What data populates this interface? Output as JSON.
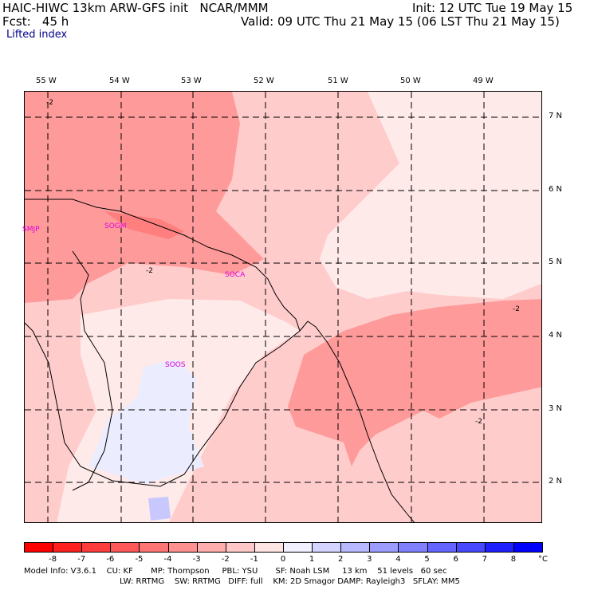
{
  "header": {
    "line1_left": "HAIC-HIWC 13km ARW-GFS init   NCAR/MMM",
    "line1_right": "Init: 12 UTC Tue 19 May 15",
    "line2_left": "Fcst:   45 h",
    "line2_right": "Valid: 09 UTC Thu 21 May 15 (06 LST Thu 21 May 15)",
    "field": "Lifted index"
  },
  "lon_labels": [
    "55 W",
    "54 W",
    "53 W",
    "52 W",
    "51 W",
    "50 W",
    "49 W"
  ],
  "lat_labels": [
    "7 N",
    "6 N",
    "5 N",
    "4 N",
    "3 N",
    "2 N"
  ],
  "stations": [
    "SMJP",
    "SOGM",
    "SOCA",
    "SOOS"
  ],
  "contour_labels": [
    "-2",
    "-2",
    "-2",
    "-2"
  ],
  "colorbar": {
    "labels": [
      "-8",
      "-7",
      "-6",
      "-5",
      "-4",
      "-3",
      "-2",
      "-1",
      "0",
      "1",
      "2",
      "3",
      "4",
      "5",
      "6",
      "7",
      "8"
    ],
    "unit": "°C",
    "colors": [
      "#ff0000",
      "#ff2020",
      "#ff3c3c",
      "#ff5858",
      "#ff7474",
      "#ff9090",
      "#ffacac",
      "#ffc8c8",
      "#ffe4e4",
      "#f0f0ff",
      "#d4d4ff",
      "#b8b8ff",
      "#9c9cff",
      "#8080ff",
      "#6464ff",
      "#4848ff",
      "#2020ff",
      "#0000ff"
    ]
  },
  "footer": {
    "line1": "Model Info: V3.6.1    CU: KF       MP: Thompson     PBL: YSU       SF: Noah LSM     13 km    51 levels   60 sec",
    "line2": "LW: RRTMG    SW: RRTMG   DIFF: full    KM: 2D Smagor DAMP: Rayleigh3   SFLAY: MM5"
  },
  "legend_colors": {
    "light": "#ffeaea",
    "pale": "#ffcccc",
    "mid": "#ffb2b2",
    "dark": "#ff9a9a",
    "darkest": "#ff7f7f",
    "blue": "#ececff"
  }
}
